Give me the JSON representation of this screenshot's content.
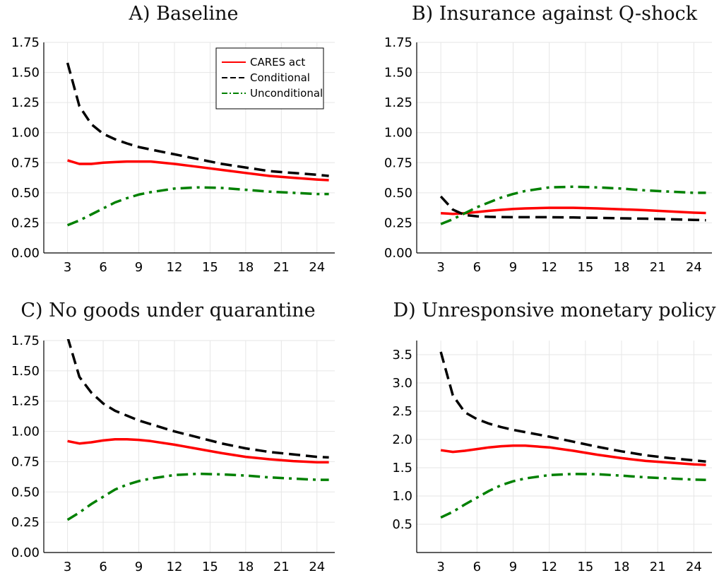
{
  "colors": {
    "cares": "#ff0000",
    "conditional": "#000000",
    "unconditional": "#008000"
  },
  "legend": {
    "entries": [
      "CARES act",
      "Conditional",
      "Unconditional"
    ]
  },
  "chart_data": [
    {
      "type": "line",
      "title": "A) Baseline",
      "xlabel": "",
      "ylabel": "",
      "xlim": [
        1,
        25.5
      ],
      "ylim": [
        0,
        1.75
      ],
      "xticks": [
        "3",
        "6",
        "9",
        "12",
        "15",
        "18",
        "21",
        "24"
      ],
      "yticks": [
        "0.00",
        "0.25",
        "0.50",
        "0.75",
        "1.00",
        "1.25",
        "1.50",
        "1.75"
      ],
      "grid": true,
      "legend": "top-right",
      "x": [
        3,
        4,
        5,
        6,
        7,
        8,
        9,
        10,
        12,
        14,
        16,
        18,
        20,
        22,
        24,
        25
      ],
      "series": [
        {
          "name": "CARES act",
          "values": [
            0.77,
            0.74,
            0.74,
            0.75,
            0.755,
            0.76,
            0.76,
            0.76,
            0.74,
            0.715,
            0.69,
            0.665,
            0.64,
            0.625,
            0.61,
            0.605
          ]
        },
        {
          "name": "Conditional",
          "values": [
            1.58,
            1.22,
            1.07,
            0.99,
            0.945,
            0.91,
            0.88,
            0.86,
            0.82,
            0.78,
            0.74,
            0.71,
            0.68,
            0.665,
            0.65,
            0.64
          ]
        },
        {
          "name": "Unconditional",
          "values": [
            0.23,
            0.27,
            0.32,
            0.37,
            0.42,
            0.455,
            0.485,
            0.505,
            0.535,
            0.545,
            0.54,
            0.525,
            0.51,
            0.5,
            0.49,
            0.49
          ]
        }
      ]
    },
    {
      "type": "line",
      "title": "B) Insurance against Q-shock",
      "xlabel": "",
      "ylabel": "",
      "xlim": [
        1,
        25.5
      ],
      "ylim": [
        0,
        1.75
      ],
      "xticks": [
        "3",
        "6",
        "9",
        "12",
        "15",
        "18",
        "21",
        "24"
      ],
      "yticks": [
        "0.00",
        "0.25",
        "0.50",
        "0.75",
        "1.00",
        "1.25",
        "1.50",
        "1.75"
      ],
      "grid": true,
      "legend": "none",
      "x": [
        3,
        4,
        5,
        6,
        7,
        8,
        9,
        10,
        12,
        14,
        16,
        18,
        20,
        22,
        24,
        25
      ],
      "series": [
        {
          "name": "CARES act",
          "values": [
            0.33,
            0.325,
            0.33,
            0.34,
            0.35,
            0.358,
            0.365,
            0.37,
            0.375,
            0.375,
            0.37,
            0.363,
            0.355,
            0.345,
            0.335,
            0.332
          ]
        },
        {
          "name": "Conditional",
          "values": [
            0.47,
            0.36,
            0.315,
            0.305,
            0.3,
            0.298,
            0.297,
            0.297,
            0.297,
            0.295,
            0.292,
            0.288,
            0.285,
            0.28,
            0.275,
            0.272
          ]
        },
        {
          "name": "Unconditional",
          "values": [
            0.24,
            0.28,
            0.33,
            0.38,
            0.42,
            0.46,
            0.49,
            0.515,
            0.545,
            0.55,
            0.545,
            0.535,
            0.52,
            0.51,
            0.5,
            0.5
          ]
        }
      ]
    },
    {
      "type": "line",
      "title": "C) No goods under quarantine",
      "xlabel": "",
      "ylabel": "",
      "xlim": [
        1,
        25.5
      ],
      "ylim": [
        0,
        1.75
      ],
      "xticks": [
        "3",
        "6",
        "9",
        "12",
        "15",
        "18",
        "21",
        "24"
      ],
      "yticks": [
        "0.00",
        "0.25",
        "0.50",
        "0.75",
        "1.00",
        "1.25",
        "1.50",
        "1.75"
      ],
      "grid": true,
      "legend": "none",
      "x": [
        3,
        4,
        5,
        6,
        7,
        8,
        9,
        10,
        12,
        14,
        16,
        18,
        20,
        22,
        24,
        25
      ],
      "series": [
        {
          "name": "CARES act",
          "values": [
            0.92,
            0.9,
            0.91,
            0.925,
            0.935,
            0.935,
            0.93,
            0.92,
            0.89,
            0.855,
            0.82,
            0.79,
            0.77,
            0.755,
            0.745,
            0.745
          ]
        },
        {
          "name": "Conditional",
          "values": [
            1.78,
            1.45,
            1.32,
            1.23,
            1.17,
            1.13,
            1.09,
            1.06,
            1.0,
            0.95,
            0.9,
            0.86,
            0.83,
            0.81,
            0.79,
            0.785
          ]
        },
        {
          "name": "Unconditional",
          "values": [
            0.27,
            0.33,
            0.4,
            0.46,
            0.52,
            0.56,
            0.59,
            0.61,
            0.64,
            0.65,
            0.645,
            0.635,
            0.62,
            0.61,
            0.6,
            0.6
          ]
        }
      ]
    },
    {
      "type": "line",
      "title": "D) Unresponsive monetary policy",
      "xlabel": "",
      "ylabel": "",
      "xlim": [
        1,
        25.5
      ],
      "ylim": [
        0,
        3.75
      ],
      "xticks": [
        "3",
        "6",
        "9",
        "12",
        "15",
        "18",
        "21",
        "24"
      ],
      "yticks": [
        "0.5",
        "1.0",
        "1.5",
        "2.0",
        "2.5",
        "3.0",
        "3.5"
      ],
      "grid": true,
      "legend": "none",
      "x": [
        3,
        4,
        5,
        6,
        7,
        8,
        9,
        10,
        12,
        14,
        16,
        18,
        20,
        22,
        24,
        25
      ],
      "series": [
        {
          "name": "CARES act",
          "values": [
            1.81,
            1.78,
            1.8,
            1.83,
            1.86,
            1.88,
            1.89,
            1.89,
            1.86,
            1.8,
            1.73,
            1.67,
            1.62,
            1.59,
            1.56,
            1.55
          ]
        },
        {
          "name": "Conditional",
          "values": [
            3.55,
            2.78,
            2.48,
            2.36,
            2.28,
            2.22,
            2.17,
            2.13,
            2.05,
            1.96,
            1.87,
            1.79,
            1.72,
            1.67,
            1.63,
            1.61
          ]
        },
        {
          "name": "Unconditional",
          "values": [
            0.62,
            0.72,
            0.85,
            0.97,
            1.09,
            1.19,
            1.26,
            1.31,
            1.37,
            1.39,
            1.385,
            1.36,
            1.33,
            1.31,
            1.29,
            1.285
          ]
        }
      ]
    }
  ]
}
